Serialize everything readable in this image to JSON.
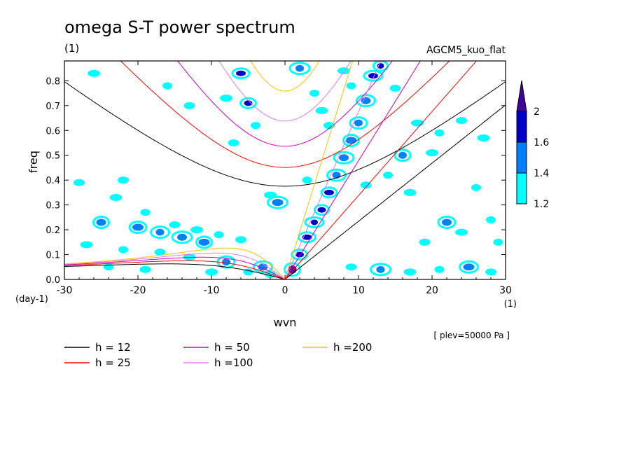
{
  "chart_data": {
    "type": "heatmap",
    "title": "omega S-T power spectrum",
    "subtitle": "(1)",
    "model_label": "AGCM5_kuo_flat",
    "xlabel": "wvn",
    "ylabel": "freq",
    "x_unit": "(1)",
    "y_unit": "(day-1)",
    "level_note": "[ plev=50000 Pa ]",
    "xlim": [
      -30,
      30
    ],
    "ylim": [
      0,
      0.88
    ],
    "x_ticks": [
      -30,
      -20,
      -10,
      0,
      10,
      20,
      30
    ],
    "x_tick_labels": [
      "-30",
      "-20",
      "-10",
      "0",
      "10",
      "20",
      "30"
    ],
    "y_ticks": [
      0.0,
      0.1,
      0.2,
      0.3,
      0.4,
      0.5,
      0.6,
      0.7,
      0.8
    ],
    "y_tick_labels": [
      "0.0",
      "0.1",
      "0.2",
      "0.3",
      "0.4",
      "0.5",
      "0.6",
      "0.7",
      "0.8"
    ],
    "colorbar": {
      "levels": [
        1.2,
        1.4,
        1.6,
        2
      ],
      "level_labels": [
        "1.2",
        "1.4",
        "1.6",
        "2"
      ],
      "colors": [
        "#00ffff",
        "#0080ff",
        "#0000c8",
        "#4000a0"
      ]
    },
    "series": [
      {
        "name": "h = 12",
        "h": 12,
        "color": "#000000"
      },
      {
        "name": "h = 25",
        "h": 25,
        "color": "#ff0000"
      },
      {
        "name": "h = 50",
        "h": 50,
        "color": "#d000c0"
      },
      {
        "name": "h =100",
        "h": 100,
        "color": "#e080e0"
      },
      {
        "name": "h =200",
        "h": 200,
        "color": "#ffc000"
      }
    ],
    "contour_blobs": [
      {
        "x": 1,
        "y": 0.04,
        "level": 3
      },
      {
        "x": 2,
        "y": 0.1,
        "level": 2
      },
      {
        "x": 3,
        "y": 0.17,
        "level": 2
      },
      {
        "x": 4,
        "y": 0.23,
        "level": 2
      },
      {
        "x": 5,
        "y": 0.28,
        "level": 2
      },
      {
        "x": 6,
        "y": 0.35,
        "level": 2
      },
      {
        "x": 7,
        "y": 0.42,
        "level": 1
      },
      {
        "x": 8,
        "y": 0.49,
        "level": 1
      },
      {
        "x": 9,
        "y": 0.56,
        "level": 1
      },
      {
        "x": 10,
        "y": 0.63,
        "level": 1
      },
      {
        "x": 11,
        "y": 0.72,
        "level": 1
      },
      {
        "x": 12,
        "y": 0.82,
        "level": 2
      },
      {
        "x": 13,
        "y": 0.86,
        "level": 2
      },
      {
        "x": -5,
        "y": 0.71,
        "level": 2
      },
      {
        "x": -6,
        "y": 0.83,
        "level": 2
      },
      {
        "x": 2,
        "y": 0.85,
        "level": 1
      },
      {
        "x": -25,
        "y": 0.23,
        "level": 1
      },
      {
        "x": -20,
        "y": 0.21,
        "level": 1
      },
      {
        "x": -17,
        "y": 0.19,
        "level": 1
      },
      {
        "x": -14,
        "y": 0.17,
        "level": 1
      },
      {
        "x": -11,
        "y": 0.15,
        "level": 1
      },
      {
        "x": -8,
        "y": 0.07,
        "level": 1
      },
      {
        "x": -3,
        "y": 0.05,
        "level": 1
      },
      {
        "x": -1,
        "y": 0.31,
        "level": 1
      },
      {
        "x": 16,
        "y": 0.5,
        "level": 1
      },
      {
        "x": 22,
        "y": 0.23,
        "level": 1
      },
      {
        "x": 25,
        "y": 0.05,
        "level": 1
      },
      {
        "x": 13,
        "y": 0.04,
        "level": 1
      },
      {
        "x": -28,
        "y": 0.39,
        "level": 0
      },
      {
        "x": -23,
        "y": 0.33,
        "level": 0
      },
      {
        "x": -19,
        "y": 0.27,
        "level": 0
      },
      {
        "x": -15,
        "y": 0.22,
        "level": 0
      },
      {
        "x": -12,
        "y": 0.2,
        "level": 0
      },
      {
        "x": -9,
        "y": 0.18,
        "level": 0
      },
      {
        "x": -6,
        "y": 0.16,
        "level": 0
      },
      {
        "x": -27,
        "y": 0.14,
        "level": 0
      },
      {
        "x": -22,
        "y": 0.12,
        "level": 0
      },
      {
        "x": -17,
        "y": 0.11,
        "level": 0
      },
      {
        "x": -13,
        "y": 0.09,
        "level": 0
      },
      {
        "x": -24,
        "y": 0.05,
        "level": 0
      },
      {
        "x": -19,
        "y": 0.04,
        "level": 0
      },
      {
        "x": -10,
        "y": 0.03,
        "level": 0
      },
      {
        "x": -5,
        "y": 0.03,
        "level": 0
      },
      {
        "x": -2,
        "y": 0.02,
        "level": 0
      },
      {
        "x": -26,
        "y": 0.83,
        "level": 0
      },
      {
        "x": -16,
        "y": 0.78,
        "level": 0
      },
      {
        "x": -13,
        "y": 0.7,
        "level": 0
      },
      {
        "x": -8,
        "y": 0.73,
        "level": 0
      },
      {
        "x": -4,
        "y": 0.62,
        "level": 0
      },
      {
        "x": -7,
        "y": 0.55,
        "level": 0
      },
      {
        "x": 5,
        "y": 0.68,
        "level": 0
      },
      {
        "x": 4,
        "y": 0.75,
        "level": 0
      },
      {
        "x": 6,
        "y": 0.62,
        "level": 0
      },
      {
        "x": 8,
        "y": 0.84,
        "level": 0
      },
      {
        "x": 9,
        "y": 0.78,
        "level": 0
      },
      {
        "x": 15,
        "y": 0.77,
        "level": 0
      },
      {
        "x": 18,
        "y": 0.63,
        "level": 0
      },
      {
        "x": 21,
        "y": 0.59,
        "level": 0
      },
      {
        "x": 24,
        "y": 0.64,
        "level": 0
      },
      {
        "x": 27,
        "y": 0.57,
        "level": 0
      },
      {
        "x": 14,
        "y": 0.42,
        "level": 0
      },
      {
        "x": 11,
        "y": 0.38,
        "level": 0
      },
      {
        "x": 17,
        "y": 0.35,
        "level": 0
      },
      {
        "x": 26,
        "y": 0.37,
        "level": 0
      },
      {
        "x": 19,
        "y": 0.15,
        "level": 0
      },
      {
        "x": 24,
        "y": 0.19,
        "level": 0
      },
      {
        "x": 28,
        "y": 0.24,
        "level": 0
      },
      {
        "x": 9,
        "y": 0.05,
        "level": 0
      },
      {
        "x": 17,
        "y": 0.03,
        "level": 0
      },
      {
        "x": 21,
        "y": 0.04,
        "level": 0
      },
      {
        "x": 28,
        "y": 0.03,
        "level": 0
      },
      {
        "x": -2,
        "y": 0.34,
        "level": 0
      },
      {
        "x": 3,
        "y": 0.4,
        "level": 0
      },
      {
        "x": -22,
        "y": 0.4,
        "level": 0
      },
      {
        "x": 20,
        "y": 0.51,
        "level": 0
      },
      {
        "x": 29,
        "y": 0.15,
        "level": 0
      }
    ]
  },
  "legend": {
    "items": [
      {
        "label": "h = 12",
        "color": "#000000"
      },
      {
        "label": "h = 25",
        "color": "#ff0000"
      },
      {
        "label": "h = 50",
        "color": "#d000c0"
      },
      {
        "label": "h =100",
        "color": "#e080e0"
      },
      {
        "label": "h =200",
        "color": "#ffc000"
      }
    ]
  }
}
